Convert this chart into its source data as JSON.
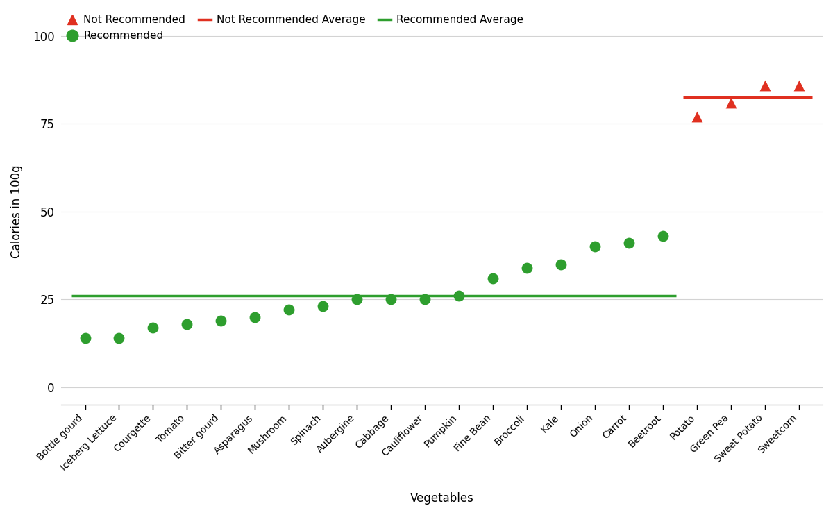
{
  "vegetables": [
    "Bottle gourd",
    "Iceberg Lettuce",
    "Courgette",
    "Tomato",
    "Bitter gourd",
    "Asparagus",
    "Mushroom",
    "Spinach",
    "Aubergine",
    "Cabbage",
    "Cauliflower",
    "Pumpkin",
    "Fine Bean",
    "Broccoli",
    "Kale",
    "Onion",
    "Carrot",
    "Beetroot",
    "Potato",
    "Green Pea",
    "Sweet Potato",
    "Sweetcorn"
  ],
  "calories": [
    14,
    14,
    17,
    18,
    19,
    20,
    22,
    23,
    25,
    25,
    25,
    26,
    31,
    34,
    35,
    40,
    41,
    43,
    77,
    81,
    86,
    86
  ],
  "recommended": [
    true,
    true,
    true,
    true,
    true,
    true,
    true,
    true,
    true,
    true,
    true,
    true,
    true,
    true,
    true,
    true,
    true,
    true,
    false,
    false,
    false,
    false
  ],
  "recommended_avg": 26,
  "not_recommended_avg": 82.5,
  "green_color": "#2e9e2e",
  "red_color": "#e03020",
  "ylabel": "Calories in 100g",
  "xlabel": "Vegetables",
  "ylim": [
    -5,
    105
  ],
  "marker_size": 130,
  "legend_order": [
    "Not Recommended",
    "Recommended",
    "Not Recommended Average",
    "Recommended Average"
  ],
  "legend_ncol_row1": 3,
  "yticks": [
    0,
    25,
    50,
    75,
    100
  ],
  "background_color": "#ffffff"
}
